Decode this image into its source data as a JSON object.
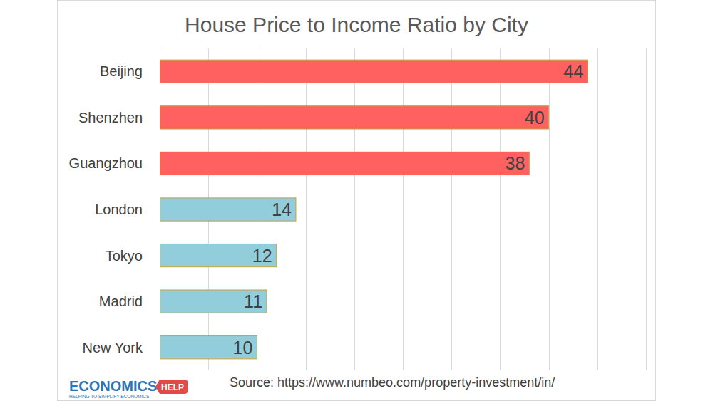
{
  "chart_data": {
    "type": "bar",
    "orientation": "horizontal",
    "title": "House Price to Income Ratio by City",
    "categories": [
      "Beijing",
      "Shenzhen",
      "Guangzhou",
      "London",
      "Tokyo",
      "Madrid",
      "New York"
    ],
    "values": [
      44,
      40,
      38,
      14,
      12,
      11,
      10
    ],
    "colors": [
      "#ff6161",
      "#ff6161",
      "#ff6161",
      "#92cddc",
      "#92cddc",
      "#92cddc",
      "#92cddc"
    ],
    "xlim": [
      0,
      50
    ],
    "xticks": [
      0,
      5,
      10,
      15,
      20,
      25,
      30,
      35,
      40,
      45,
      50
    ],
    "grid": true,
    "data_labels": true,
    "tick_labels": false,
    "annotations": [
      "Source: https://www.numbeo.com/property-investment/in/",
      "ECONOMICS",
      "HELP",
      "HELPING TO SIMPLIFY ECONOMICS"
    ]
  }
}
